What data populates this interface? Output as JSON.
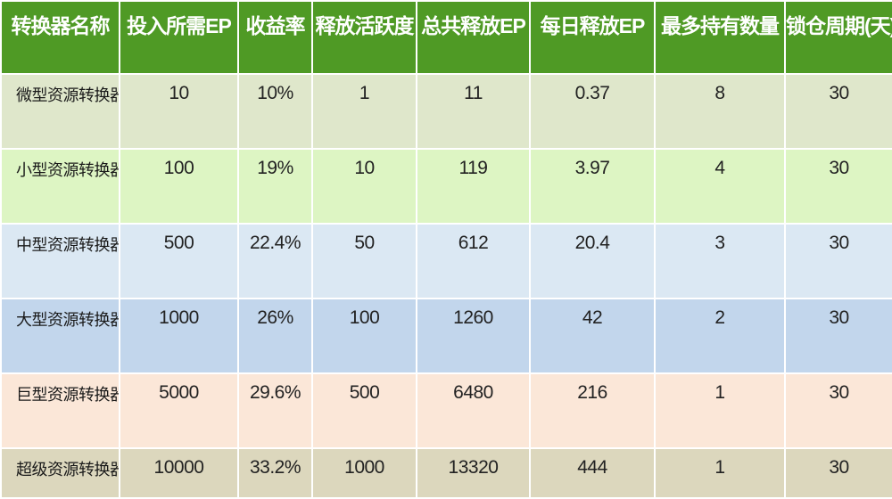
{
  "headers": [
    "转换器名称",
    "投入所需EP",
    "收益率",
    "释放活跃度",
    "总共释放EP",
    "每日释放EP",
    "最多持有数量",
    "锁仓周期(天)"
  ],
  "rows": [
    [
      "微型资源转换器",
      "10",
      "10%",
      "1",
      "11",
      "0.37",
      "8",
      "30"
    ],
    [
      "小型资源转换器",
      "100",
      "19%",
      "10",
      "119",
      "3.97",
      "4",
      "30"
    ],
    [
      "中型资源转换器",
      "500",
      "22.4%",
      "50",
      "612",
      "20.4",
      "3",
      "30"
    ],
    [
      "大型资源转换器",
      "1000",
      "26%",
      "100",
      "1260",
      "42",
      "2",
      "30"
    ],
    [
      "巨型资源转换器",
      "5000",
      "29.6%",
      "500",
      "6480",
      "216",
      "1",
      "30"
    ],
    [
      "超级资源转换器",
      "10000",
      "33.2%",
      "1000",
      "13320",
      "444",
      "1",
      "30"
    ]
  ],
  "colors": {
    "header_bg": "#4f9a25",
    "row_backgrounds": [
      "#dfe7cb",
      "#ddf5c3",
      "#dbe8f3",
      "#c2d6ec",
      "#fbe7d8",
      "#dcd7bd"
    ]
  }
}
